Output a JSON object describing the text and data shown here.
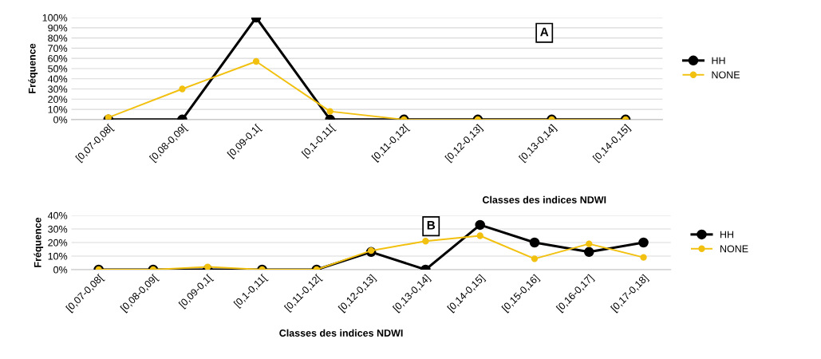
{
  "chart_data": [
    {
      "type": "line",
      "xlabel": "Classes des indices NDWI",
      "ylabel": "Fréquence",
      "annotations": [
        "A"
      ],
      "categories": [
        "[0,07-0,08[",
        "[0,08-0,09[",
        "[0,09-0,1[",
        "[0,1-0,11[",
        "[0,11-0,12[",
        "[0,12-0,13]",
        "[0,13-0,14]",
        "[0,14-0,15]"
      ],
      "series": [
        {
          "name": "HH",
          "color": "#000000",
          "values": [
            0,
            0,
            100,
            0,
            0,
            0,
            0,
            0
          ]
        },
        {
          "name": "NONE",
          "color": "#f2c00f",
          "values": [
            2,
            30,
            57,
            8,
            0,
            0,
            0,
            0
          ]
        }
      ],
      "ylim": [
        0,
        100
      ],
      "yticks": [
        {
          "value": 0,
          "label": "0%"
        },
        {
          "value": 10,
          "label": "10%"
        },
        {
          "value": 20,
          "label": "20%"
        },
        {
          "value": 30,
          "label": "30%"
        },
        {
          "value": 40,
          "label": "40%"
        },
        {
          "value": 50,
          "label": "50%"
        },
        {
          "value": 60,
          "label": "60%"
        },
        {
          "value": 70,
          "label": "70%"
        },
        {
          "value": 80,
          "label": "80%"
        },
        {
          "value": 90,
          "label": "90%"
        },
        {
          "value": 100,
          "label": "100%"
        }
      ],
      "grid": "y",
      "legend": "right",
      "marker": "circle",
      "line_style": "solid"
    },
    {
      "type": "line",
      "xlabel": "Classes des indices NDWI",
      "ylabel": "Fréquence",
      "annotations": [
        "B"
      ],
      "categories": [
        "[0,07-0,08[",
        "[0,08-0,09[",
        "[0,09-0,1[",
        "[0,1-0,11[",
        "[0,11-0,12[",
        "[0,12-0,13]",
        "[0,13-0,14]",
        "[0,14-0,15]",
        "[0,15-0,16]",
        "[0,16-0,17]",
        "[0,17-0,18]"
      ],
      "series": [
        {
          "name": "HH",
          "color": "#000000",
          "values": [
            0,
            0,
            0,
            0,
            0,
            13,
            0,
            33,
            20,
            13,
            20
          ]
        },
        {
          "name": "NONE",
          "color": "#f2c00f",
          "values": [
            0,
            0,
            2,
            0,
            0,
            14,
            21,
            25,
            8,
            19,
            9
          ]
        }
      ],
      "ylim": [
        0,
        40
      ],
      "yticks": [
        {
          "value": 0,
          "label": "0%"
        },
        {
          "value": 10,
          "label": "10%"
        },
        {
          "value": 20,
          "label": "20%"
        },
        {
          "value": 30,
          "label": "30%"
        },
        {
          "value": 40,
          "label": "40%"
        }
      ],
      "grid": "y",
      "legend": "right",
      "marker": "circle",
      "line_style": "solid"
    }
  ]
}
